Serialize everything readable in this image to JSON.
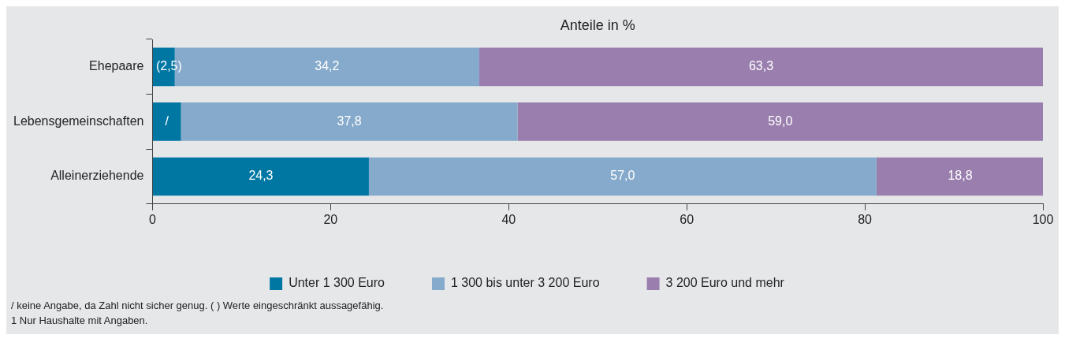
{
  "chart_data": {
    "type": "bar",
    "orientation": "horizontal",
    "stacked": true,
    "title": "Anteile in %",
    "categories": [
      "Ehepaare",
      "Lebensgemeinschaften",
      "Alleinerziehende"
    ],
    "series": [
      {
        "name": "Unter 1 300 Euro",
        "color": "#0077a3",
        "values": [
          2.5,
          3.2,
          24.3
        ],
        "value_labels": [
          "(2,5)",
          "/",
          "24,3"
        ]
      },
      {
        "name": "1 300 bis unter 3 200 Euro",
        "color": "#86aacb",
        "values": [
          34.2,
          37.8,
          57.0
        ],
        "value_labels": [
          "34,2",
          "37,8",
          "57,0"
        ]
      },
      {
        "name": "3 200 Euro und mehr",
        "color": "#9a7fae",
        "values": [
          63.3,
          59.0,
          18.8
        ],
        "value_labels": [
          "63,3",
          "59,0",
          "18,8"
        ]
      }
    ],
    "xlim": [
      0,
      100
    ],
    "xticks": [
      0,
      20,
      40,
      60,
      80,
      100
    ],
    "legend": "bottom",
    "annotations": [
      "/ keine Angabe, da Zahl nicht sicher genug. ( ) Werte eingeschränkt aussagefähig.",
      "1 Nur Haushalte mit Angaben."
    ]
  }
}
